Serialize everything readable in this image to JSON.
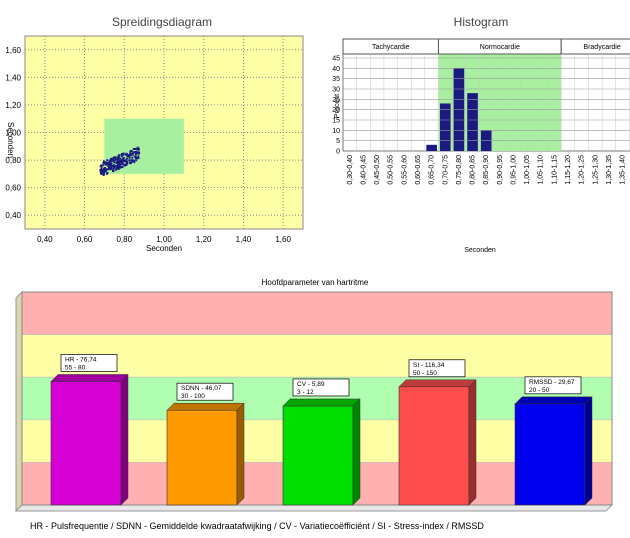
{
  "colors": {
    "plot_bg": "#ffffa6",
    "scatter_zone": "#a8f0a0",
    "scatter_points": "#1a1a80",
    "hist_bar": "#1a1a80",
    "hist_zone": "#a8f0a0",
    "band_red": "#ffb0b0",
    "band_yellow": "#ffffa6",
    "band_green": "#b0ffb0"
  },
  "chart_data": [
    {
      "type": "scatter",
      "title": "Spreidingsdiagram",
      "xlabel": "Seconden",
      "ylabel": "Seconden",
      "xlim": [
        0.3,
        1.7
      ],
      "ylim": [
        0.3,
        1.7
      ],
      "xticks": [
        "0,40",
        "0,60",
        "0,80",
        "1,00",
        "1,20",
        "1,40",
        "1,60"
      ],
      "yticks": [
        "0,40",
        "0,60",
        "0,80",
        "1,00",
        "1,20",
        "1,40",
        "1,60"
      ],
      "xtick_values": [
        0.4,
        0.6,
        0.8,
        1.0,
        1.2,
        1.4,
        1.6
      ],
      "ytick_values": [
        0.4,
        0.6,
        0.8,
        1.0,
        1.2,
        1.4,
        1.6
      ],
      "normal_zone": {
        "x": [
          0.7,
          1.1
        ],
        "y": [
          0.7,
          1.1
        ]
      },
      "cluster": {
        "x_range": [
          0.68,
          0.88
        ],
        "y_range": [
          0.68,
          0.89
        ]
      }
    },
    {
      "type": "bar",
      "title": "Histogram",
      "xlabel": "Seconden",
      "ylabel": "Procent",
      "ylim": [
        0,
        45
      ],
      "yticks": [
        0,
        5,
        10,
        15,
        20,
        25,
        30,
        35,
        40,
        45
      ],
      "zones": [
        "Tachycardie",
        "Normocardie",
        "Bradycardie"
      ],
      "normal_zone_categories": [
        7,
        16
      ],
      "categories": [
        "0,30-0,40",
        "0,40-0,45",
        "0,45-0,50",
        "0,50-0,55",
        "0,55-0,60",
        "0,60-0,65",
        "0,65-0,70",
        "0,70-0,75",
        "0,75-0,80",
        "0,80-0,85",
        "0,85-0,90",
        "0,90-0,95",
        "0,95-1,00",
        "1,00-1,05",
        "1,05-1,10",
        "1,10-1,15",
        "1,15-1,20",
        "1,20-1,25",
        "1,25-1,30",
        "1,30-1,35",
        "1,35-1,40",
        "1,4"
      ],
      "values": [
        0,
        0,
        0,
        0,
        0,
        0,
        3,
        23,
        40,
        28,
        10,
        0,
        0,
        0,
        0,
        0,
        0,
        0,
        0,
        0,
        0,
        0
      ]
    },
    {
      "type": "bar",
      "title": "Hoofdparameter van hartritme",
      "caption": "HR - Pulsfrequentie / SDNN - Gemiddelde kwadraatafwijking / CV - Variatiecoëfficiënt / SI - Stress-index / RMSSD",
      "bands": [
        "red",
        "yellow",
        "green",
        "yellow",
        "red"
      ],
      "series": [
        {
          "label": "HR - 76,74",
          "range": "55 - 80",
          "level": 0.58,
          "color": "#d400d4"
        },
        {
          "label": "SDNN - 46,07",
          "range": "30 - 100",
          "level": 0.445,
          "color": "#ff9900"
        },
        {
          "label": "CV - 5,89",
          "range": "3 - 12",
          "level": 0.465,
          "color": "#00dd00"
        },
        {
          "label": "SI - 116,34",
          "range": "50 - 150",
          "level": 0.555,
          "color": "#ff4d4d"
        },
        {
          "label": "RMSSD - 29,67",
          "range": "20 - 50",
          "level": 0.475,
          "color": "#0000ee"
        }
      ]
    }
  ]
}
